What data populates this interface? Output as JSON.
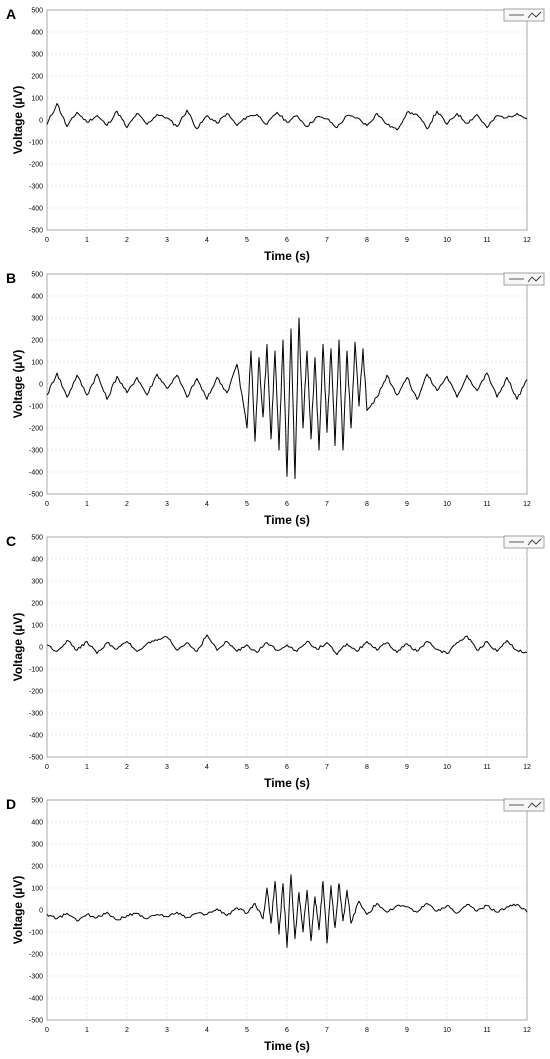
{
  "chart_data": [
    {
      "panel": "A",
      "type": "line",
      "xlabel": "Time (s)",
      "ylabel": "Voltage (µV)",
      "xlim": [
        0,
        12
      ],
      "ylim": [
        -500,
        500
      ],
      "xticks": [
        "0",
        "1",
        "2",
        "3",
        "4",
        "5",
        "6",
        "7",
        "8",
        "9",
        "10",
        "11",
        "12"
      ],
      "yticks": [
        "500",
        "400",
        "300",
        "200",
        "100",
        "0",
        "-100",
        "-200",
        "-300",
        "-400",
        "-500"
      ],
      "grid": true,
      "legend_position": "top-right",
      "x": [
        0,
        0.25,
        0.5,
        0.75,
        1,
        1.25,
        1.5,
        1.75,
        2,
        2.25,
        2.5,
        2.75,
        3,
        3.25,
        3.5,
        3.75,
        4,
        4.25,
        4.5,
        4.75,
        5,
        5.25,
        5.5,
        5.75,
        6,
        6.25,
        6.5,
        6.75,
        7,
        7.25,
        7.5,
        7.75,
        8,
        8.25,
        8.5,
        8.75,
        9,
        9.25,
        9.5,
        9.75,
        10,
        10.25,
        10.5,
        10.75,
        11,
        11.25,
        11.5,
        11.75,
        12
      ],
      "y": [
        -20,
        75,
        -30,
        35,
        -10,
        20,
        -25,
        40,
        -35,
        30,
        -20,
        25,
        10,
        -30,
        45,
        -40,
        20,
        -15,
        30,
        -25,
        15,
        25,
        -20,
        35,
        -10,
        20,
        -30,
        15,
        5,
        -35,
        20,
        10,
        -25,
        30,
        -20,
        -45,
        35,
        25,
        -40,
        40,
        -20,
        30,
        -15,
        25,
        -35,
        20,
        10,
        30,
        5
      ]
    },
    {
      "panel": "B",
      "type": "line",
      "xlabel": "Time (s)",
      "ylabel": "Voltage (µV)",
      "xlim": [
        0,
        12
      ],
      "ylim": [
        -500,
        500
      ],
      "xticks": [
        "0",
        "1",
        "2",
        "3",
        "4",
        "5",
        "6",
        "7",
        "8",
        "9",
        "10",
        "11",
        "12"
      ],
      "yticks": [
        "500",
        "400",
        "300",
        "200",
        "100",
        "0",
        "-100",
        "-200",
        "-300",
        "-400",
        "-500"
      ],
      "grid": true,
      "legend_position": "top-right",
      "x": [
        0,
        0.25,
        0.5,
        0.75,
        1,
        1.25,
        1.5,
        1.75,
        2,
        2.25,
        2.5,
        2.75,
        3,
        3.25,
        3.5,
        3.75,
        4,
        4.25,
        4.5,
        4.75,
        5,
        5.1,
        5.2,
        5.3,
        5.4,
        5.5,
        5.6,
        5.7,
        5.8,
        5.9,
        6,
        6.1,
        6.2,
        6.3,
        6.4,
        6.5,
        6.6,
        6.7,
        6.8,
        6.9,
        7,
        7.1,
        7.2,
        7.3,
        7.4,
        7.5,
        7.6,
        7.7,
        7.8,
        7.9,
        8,
        8.25,
        8.5,
        8.75,
        9,
        9.25,
        9.5,
        9.75,
        10,
        10.25,
        10.5,
        10.75,
        11,
        11.25,
        11.5,
        11.75,
        12
      ],
      "y": [
        -50,
        50,
        -60,
        40,
        -50,
        45,
        -70,
        35,
        -40,
        30,
        -50,
        45,
        -20,
        40,
        -60,
        25,
        -70,
        30,
        -40,
        90,
        -200,
        150,
        -260,
        120,
        -150,
        180,
        -250,
        150,
        -300,
        200,
        -420,
        250,
        -430,
        300,
        -200,
        150,
        -250,
        120,
        -300,
        180,
        -220,
        160,
        -280,
        200,
        -300,
        150,
        -200,
        190,
        -100,
        160,
        -120,
        -60,
        40,
        -50,
        30,
        -70,
        45,
        -30,
        35,
        -60,
        40,
        -30,
        50,
        -60,
        30,
        -70,
        20
      ]
    },
    {
      "panel": "C",
      "type": "line",
      "xlabel": "Time (s)",
      "ylabel": "Voltage (µV)",
      "xlim": [
        0,
        12
      ],
      "ylim": [
        -500,
        500
      ],
      "xticks": [
        "0",
        "1",
        "2",
        "3",
        "4",
        "5",
        "6",
        "7",
        "8",
        "9",
        "10",
        "11",
        "12"
      ],
      "yticks": [
        "500",
        "400",
        "300",
        "200",
        "100",
        "0",
        "-100",
        "-200",
        "-300",
        "-400",
        "-500"
      ],
      "grid": true,
      "legend_position": "top-right",
      "x": [
        0,
        0.25,
        0.5,
        0.75,
        1,
        1.25,
        1.5,
        1.75,
        2,
        2.25,
        2.5,
        2.75,
        3,
        3.25,
        3.5,
        3.75,
        4,
        4.25,
        4.5,
        4.75,
        5,
        5.25,
        5.5,
        5.75,
        6,
        6.25,
        6.5,
        6.75,
        7,
        7.25,
        7.5,
        7.75,
        8,
        8.25,
        8.5,
        8.75,
        9,
        9.25,
        9.5,
        9.75,
        10,
        10.25,
        10.5,
        10.75,
        11,
        11.25,
        11.5,
        11.75,
        12
      ],
      "y": [
        10,
        -20,
        30,
        -15,
        25,
        -30,
        20,
        -10,
        25,
        -20,
        15,
        30,
        45,
        -15,
        20,
        -20,
        55,
        -15,
        25,
        -20,
        10,
        -25,
        20,
        -15,
        10,
        -20,
        25,
        -10,
        20,
        -35,
        15,
        -20,
        25,
        -15,
        20,
        -25,
        15,
        -20,
        25,
        -10,
        -30,
        20,
        50,
        -15,
        25,
        -20,
        30,
        -15,
        -25
      ]
    },
    {
      "panel": "D",
      "type": "line",
      "xlabel": "Time (s)",
      "ylabel": "Voltage (µV)",
      "xlim": [
        0,
        12
      ],
      "ylim": [
        -500,
        500
      ],
      "xticks": [
        "0",
        "1",
        "2",
        "3",
        "4",
        "5",
        "6",
        "7",
        "8",
        "9",
        "10",
        "11",
        "12"
      ],
      "yticks": [
        "500",
        "400",
        "300",
        "200",
        "100",
        "0",
        "-100",
        "-200",
        "-300",
        "-400",
        "-500"
      ],
      "grid": true,
      "legend_position": "top-right",
      "x": [
        0,
        0.25,
        0.5,
        0.75,
        1,
        1.25,
        1.5,
        1.75,
        2,
        2.25,
        2.5,
        2.75,
        3,
        3.25,
        3.5,
        3.75,
        4,
        4.25,
        4.5,
        4.75,
        5,
        5.2,
        5.4,
        5.5,
        5.6,
        5.7,
        5.8,
        5.9,
        6,
        6.1,
        6.2,
        6.3,
        6.4,
        6.5,
        6.6,
        6.7,
        6.8,
        6.9,
        7,
        7.1,
        7.2,
        7.3,
        7.4,
        7.5,
        7.6,
        7.8,
        8,
        8.25,
        8.5,
        8.75,
        9,
        9.25,
        9.5,
        9.75,
        10,
        10.25,
        10.5,
        10.75,
        11,
        11.25,
        11.5,
        11.75,
        12
      ],
      "y": [
        -20,
        -40,
        -15,
        -50,
        -20,
        -35,
        -10,
        -45,
        -25,
        -15,
        -40,
        -20,
        -30,
        -10,
        -35,
        -15,
        -20,
        5,
        -25,
        10,
        -15,
        30,
        -40,
        100,
        -60,
        130,
        -110,
        120,
        -170,
        160,
        -130,
        80,
        -100,
        90,
        -140,
        60,
        -90,
        130,
        -150,
        110,
        -80,
        120,
        -50,
        90,
        -60,
        40,
        -20,
        30,
        -10,
        20,
        15,
        -10,
        30,
        -5,
        20,
        -15,
        25,
        -5,
        20,
        -10,
        15,
        25,
        -10
      ]
    }
  ]
}
